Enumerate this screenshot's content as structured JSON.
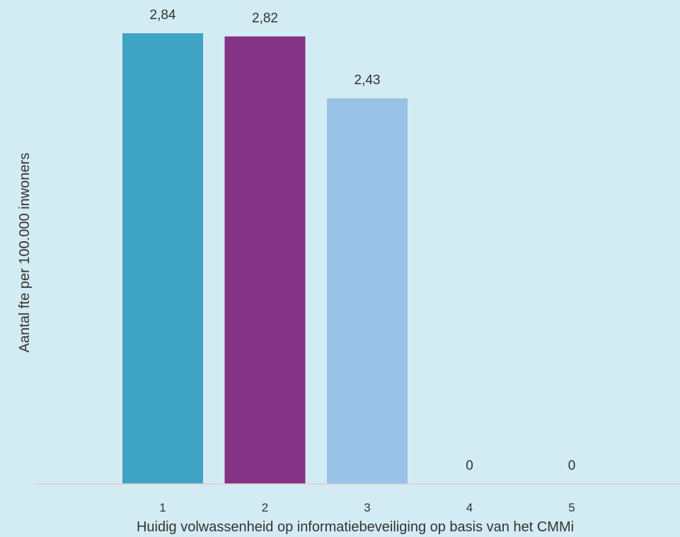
{
  "chart_data": {
    "type": "bar",
    "categories": [
      "1",
      "2",
      "3",
      "4",
      "5"
    ],
    "values": [
      2.84,
      2.82,
      2.43,
      0,
      0
    ],
    "value_labels": [
      "2,84",
      "2,82",
      "2,43",
      "0",
      "0"
    ],
    "bar_colors": [
      "#3fa3c3",
      "#843385",
      "#99c2e7",
      "#99c2e7",
      "#99c2e7"
    ],
    "xlabel": "Huidig volwassenheid op informatiebeveiliging op basis van het CMMi",
    "ylabel": "Aantal fte per 100.000 inwoners",
    "ylim": [
      0,
      3.0
    ],
    "grid": false,
    "legend": "none",
    "background": "#d3ebf2",
    "axis_color": "#e6c9d0"
  }
}
